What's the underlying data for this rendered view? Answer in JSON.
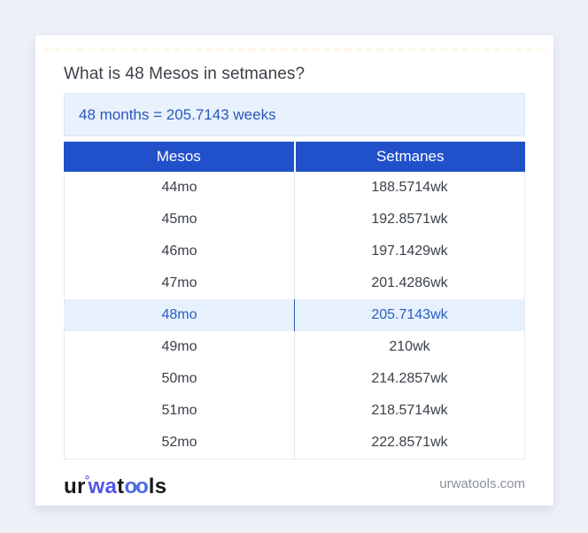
{
  "page": {
    "title": "What is 48 Mesos in setmanes?",
    "result_text": "48 months = 205.7143 weeks"
  },
  "table": {
    "headers": [
      "Mesos",
      "Setmanes"
    ],
    "rows": [
      {
        "mesos": "44mo",
        "setmanes": "188.5714wk",
        "highlighted": false
      },
      {
        "mesos": "45mo",
        "setmanes": "192.8571wk",
        "highlighted": false
      },
      {
        "mesos": "46mo",
        "setmanes": "197.1429wk",
        "highlighted": false
      },
      {
        "mesos": "47mo",
        "setmanes": "201.4286wk",
        "highlighted": false
      },
      {
        "mesos": "48mo",
        "setmanes": "205.7143wk",
        "highlighted": true
      },
      {
        "mesos": "49mo",
        "setmanes": "210wk",
        "highlighted": false
      },
      {
        "mesos": "50mo",
        "setmanes": "214.2857wk",
        "highlighted": false
      },
      {
        "mesos": "51mo",
        "setmanes": "218.5714wk",
        "highlighted": false
      },
      {
        "mesos": "52mo",
        "setmanes": "222.8571wk",
        "highlighted": false
      }
    ]
  },
  "footer": {
    "logo": {
      "seg1": "ur",
      "ring": "°",
      "seg2": "wa",
      "seg3": "t",
      "seg4": "oo",
      "seg5": "ls"
    },
    "website": "urwatools.com"
  },
  "colors": {
    "header_blue": "#2150cb",
    "result_text_blue": "#2a58bd",
    "result_bg": "#e9f1fc",
    "highlight_row_bg": "#e7f1fd",
    "highlight_text": "#2a5ec2",
    "logo_indigo": "#5356e8",
    "logo_blue": "#4b6ae6",
    "page_bg": "#edf1f7"
  }
}
